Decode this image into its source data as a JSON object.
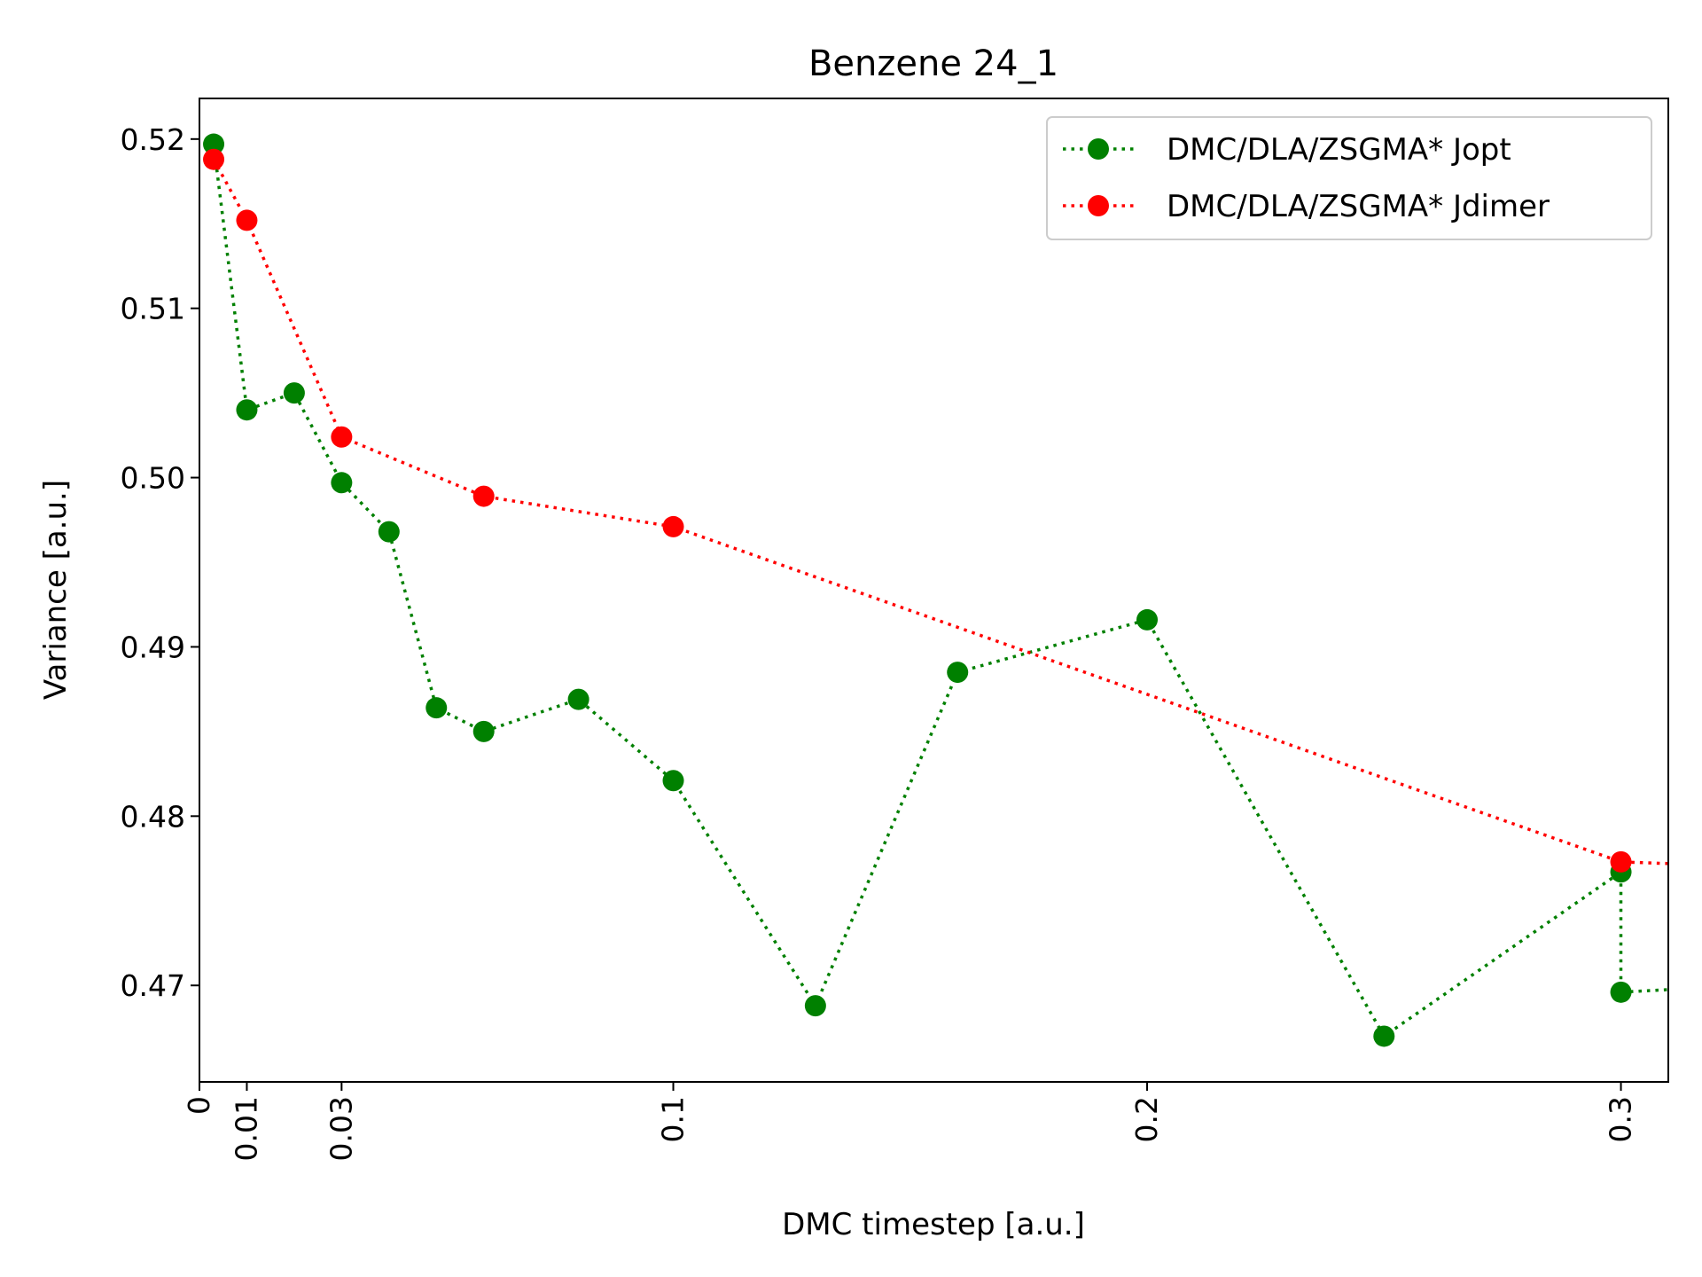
{
  "chart_data": {
    "type": "line",
    "title": "Benzene 24_1",
    "xlabel": "DMC timestep [a.u.]",
    "ylabel": "Variance [a.u.]",
    "xlim": [
      0,
      0.31
    ],
    "ylim": [
      0.4643,
      0.5224
    ],
    "x_ticks": [
      {
        "value": 0,
        "label": "0"
      },
      {
        "value": 0.01,
        "label": "0.01"
      },
      {
        "value": 0.03,
        "label": "0.03"
      },
      {
        "value": 0.1,
        "label": "0.1"
      },
      {
        "value": 0.2,
        "label": "0.2"
      },
      {
        "value": 0.3,
        "label": "0.3"
      }
    ],
    "y_ticks": [
      {
        "value": 0.47,
        "label": "0.47"
      },
      {
        "value": 0.48,
        "label": "0.48"
      },
      {
        "value": 0.49,
        "label": "0.49"
      },
      {
        "value": 0.5,
        "label": "0.50"
      },
      {
        "value": 0.51,
        "label": "0.51"
      },
      {
        "value": 0.52,
        "label": "0.52"
      }
    ],
    "grid": false,
    "legend_position": "top-right",
    "series": [
      {
        "name": "DMC/DLA/ZSGMA* Jopt",
        "color": "#008000",
        "marker": "circle",
        "line_style": "dotted",
        "x": [
          0.003,
          0.01,
          0.02,
          0.03,
          0.04,
          0.05,
          0.06,
          0.08,
          0.1,
          0.13,
          0.16,
          0.2,
          0.25,
          0.3,
          0.3,
          0.32
        ],
        "y": [
          0.5197,
          0.504,
          0.505,
          0.4997,
          0.4968,
          0.4864,
          0.485,
          0.4869,
          0.4821,
          0.4688,
          0.4885,
          0.4916,
          0.467,
          0.4767,
          0.4696,
          0.4699
        ]
      },
      {
        "name": "DMC/DLA/ZSGMA* Jdimer",
        "color": "#ff0000",
        "marker": "circle",
        "line_style": "dotted",
        "x": [
          0.003,
          0.01,
          0.03,
          0.06,
          0.1,
          0.3,
          0.32
        ],
        "y": [
          0.5188,
          0.5152,
          0.5024,
          0.4989,
          0.4971,
          0.4773,
          0.4771
        ]
      }
    ]
  }
}
